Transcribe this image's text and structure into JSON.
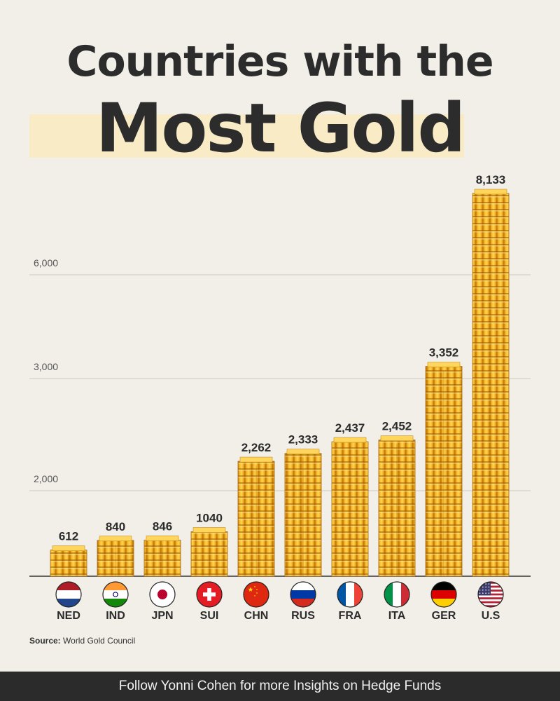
{
  "title": {
    "line1": "Countries with the",
    "line2": "Most Gold"
  },
  "chart_data": {
    "type": "bar",
    "categories": [
      "NED",
      "IND",
      "JPN",
      "SUI",
      "CHN",
      "RUS",
      "FRA",
      "ITA",
      "GER",
      "U.S"
    ],
    "values": [
      612,
      840,
      846,
      1040,
      2262,
      2333,
      2437,
      2452,
      3352,
      8133
    ],
    "value_labels": [
      "612",
      "840",
      "846",
      "1040",
      "2,262",
      "2,333",
      "2,437",
      "2,452",
      "3,352",
      "8,133"
    ],
    "yticks": [
      {
        "value": 2000,
        "label": "2,000"
      },
      {
        "value": 3000,
        "label": "3,000"
      },
      {
        "value": 6000,
        "label": "6,000"
      }
    ],
    "grid": true,
    "bar_color": "#e8a21c"
  },
  "source": {
    "label": "Source:",
    "text": "World Gold Council"
  },
  "footer": {
    "text": "Follow Yonni Cohen for more Insights on Hedge Funds"
  }
}
